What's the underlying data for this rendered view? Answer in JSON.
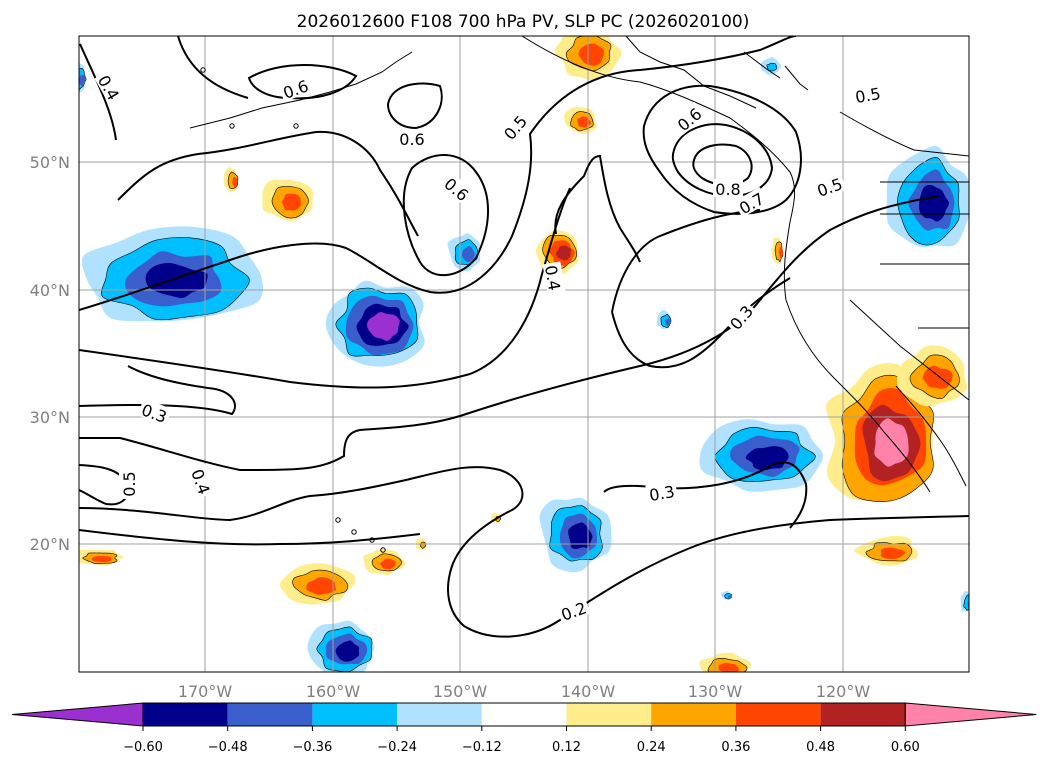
{
  "title": "2026012600 F108 700 hPa PV, SLP PC (2026020100)",
  "map": {
    "lat_ticks": [
      "50°N",
      "40°N",
      "30°N",
      "20°N"
    ],
    "lon_ticks": [
      "170°W",
      "160°W",
      "150°W",
      "140°W",
      "130°W",
      "120°W"
    ],
    "grid": true
  },
  "contour_labels": [
    "0.4",
    "0.6",
    "0.6",
    "0.5",
    "0.6",
    "0.6",
    "0.8",
    "0.7",
    "0.5",
    "0.5",
    "0.4",
    "0.3",
    "0.3",
    "0.5",
    "0.4",
    "0.3",
    "0.2"
  ],
  "colorbar": {
    "tick_labels": [
      "−0.60",
      "−0.48",
      "−0.36",
      "−0.24",
      "−0.12",
      "0.12",
      "0.24",
      "0.36",
      "0.48",
      "0.60"
    ],
    "colors": [
      "#9b30d0",
      "#00008b",
      "#3a5fcd",
      "#00bfff",
      "#b0e2ff",
      "#ffffff",
      "#ffec8b",
      "#ffa500",
      "#ff4500",
      "#b22222",
      "#ff82ab"
    ]
  }
}
